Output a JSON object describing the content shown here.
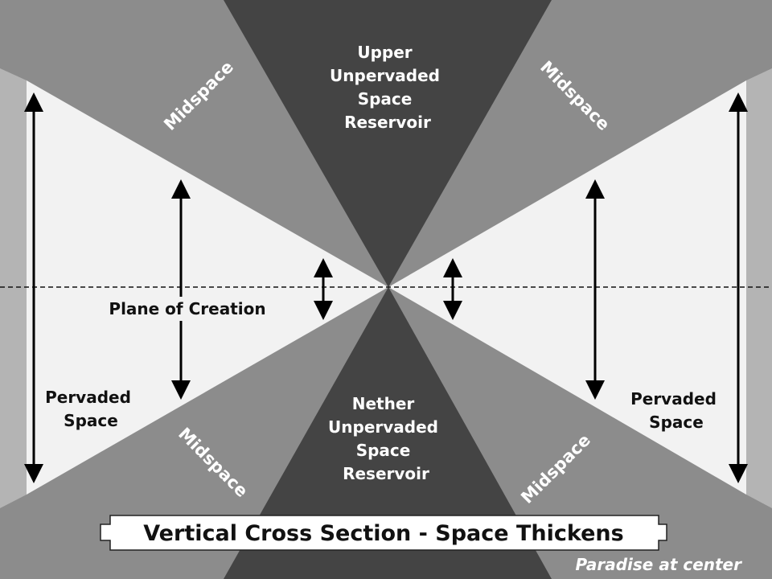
{
  "labels": {
    "upper_reservoir": [
      "Upper",
      "Unpervaded",
      "Space",
      "Reservoir"
    ],
    "nether_reservoir": [
      "Nether",
      "Unpervaded",
      "Space",
      "Reservoir"
    ],
    "midspace_upper_left": "Midspace",
    "midspace_upper_right": "Midspace",
    "midspace_lower_left": "Midspace",
    "midspace_lower_right": "Midspace",
    "plane_of_creation": "Plane of Creation",
    "pervaded_left": [
      "Pervaded",
      "Space"
    ],
    "pervaded_right": [
      "Pervaded",
      "Space"
    ]
  },
  "banner": {
    "title": "Vertical Cross Section - Space Thickens"
  },
  "footnote": "Paradise at center",
  "colors": {
    "pervaded_space": "#f2f2f2",
    "midspace": "#8c8c8c",
    "unpervaded_reservoir": "#444444",
    "side_strip": "#b4b4b4",
    "arrow": "#000000",
    "banner_fill": "#ffffff"
  }
}
